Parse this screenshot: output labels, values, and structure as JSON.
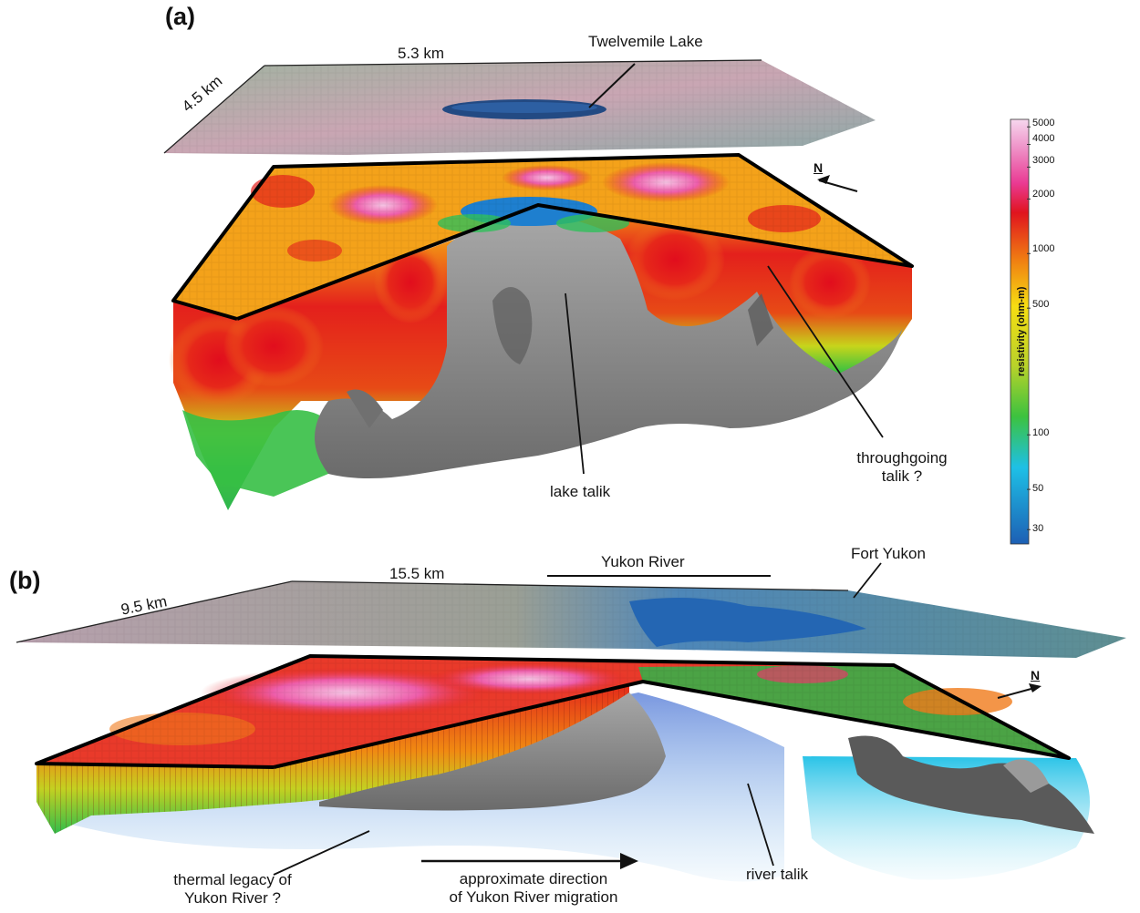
{
  "panel_a": {
    "letter": "(a)",
    "dim_width": "5.3 km",
    "dim_depth": "4.5 km",
    "lake_label": "Twelvemile Lake",
    "north": "N",
    "annotations": {
      "lake_talik": "lake talik",
      "throughgoing_line1": "throughgoing",
      "throughgoing_line2": "talik ?"
    }
  },
  "panel_b": {
    "letter": "(b)",
    "dim_width": "15.5 km",
    "dim_depth": "9.5 km",
    "river_label": "Yukon River",
    "town_label": "Fort Yukon",
    "north": "N",
    "annotations": {
      "thermal_line1": "thermal legacy of",
      "thermal_line2": "Yukon River ?",
      "direction_line1": "approximate direction",
      "direction_line2": "of Yukon River migration",
      "river_talik": "river talik"
    }
  },
  "colorbar": {
    "title": "resistivity (ohm-m)",
    "scale": "log",
    "range": [
      25,
      5500
    ],
    "ticks": [
      "5000",
      "4000",
      "3000",
      "2000",
      "1000",
      "500",
      "100",
      "50",
      "30"
    ],
    "colors": {
      "very_high": "#f3c6e6",
      "high_pink": "#ea3a93",
      "red": "#e0141e",
      "orange": "#f07d12",
      "yellow": "#f6dd12",
      "green": "#3cc23f",
      "cyan": "#1ec0e6",
      "blue": "#1d5fb4",
      "talik_gray": "#8a8a8a"
    }
  }
}
